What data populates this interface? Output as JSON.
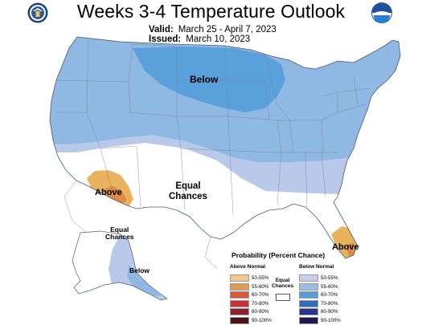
{
  "header": {
    "title": "Weeks 3-4 Temperature Outlook",
    "valid_label": "Valid:",
    "valid_value": "March 25 - April 7, 2023",
    "issued_label": "Issued:",
    "issued_value": "March 10, 2023"
  },
  "logos": {
    "left": "department-of-commerce-seal",
    "right": "noaa-logo"
  },
  "map": {
    "labels": {
      "below_main": "Below",
      "above_sw": "Above",
      "equal_chances_main_1": "Equal",
      "equal_chances_main_2": "Chances",
      "above_fl": "Above",
      "equal_chances_ak_1": "Equal",
      "equal_chances_ak_2": "Chances",
      "below_ak": "Below"
    },
    "categories": {
      "below_55_60": "#8fb8e3",
      "below_50_55": "#b9c9ea",
      "below_60_70": "#5aa1dc",
      "above_50_55": "#e9b35e",
      "above_55_60": "#dd8a47"
    }
  },
  "legend": {
    "title": "Probability (Percent Chance)",
    "above_header": "Above Normal",
    "below_header": "Below Normal",
    "equal_label_1": "Equal",
    "equal_label_2": "Chances",
    "rows": [
      {
        "label": "50-55%",
        "above": "#f3c88a",
        "below": "#c6d0ec"
      },
      {
        "label": "55-60%",
        "above": "#e39a52",
        "below": "#9dbde6"
      },
      {
        "label": "60-70%",
        "above": "#d95a3a",
        "below": "#5a9bdb"
      },
      {
        "label": "70-80%",
        "above": "#c7303a",
        "below": "#2d6fbd"
      },
      {
        "label": "80-90%",
        "above": "#8e1f2d",
        "below": "#27378e"
      },
      {
        "label": "90-100%",
        "above": "#4b1318",
        "below": "#241450"
      }
    ]
  }
}
